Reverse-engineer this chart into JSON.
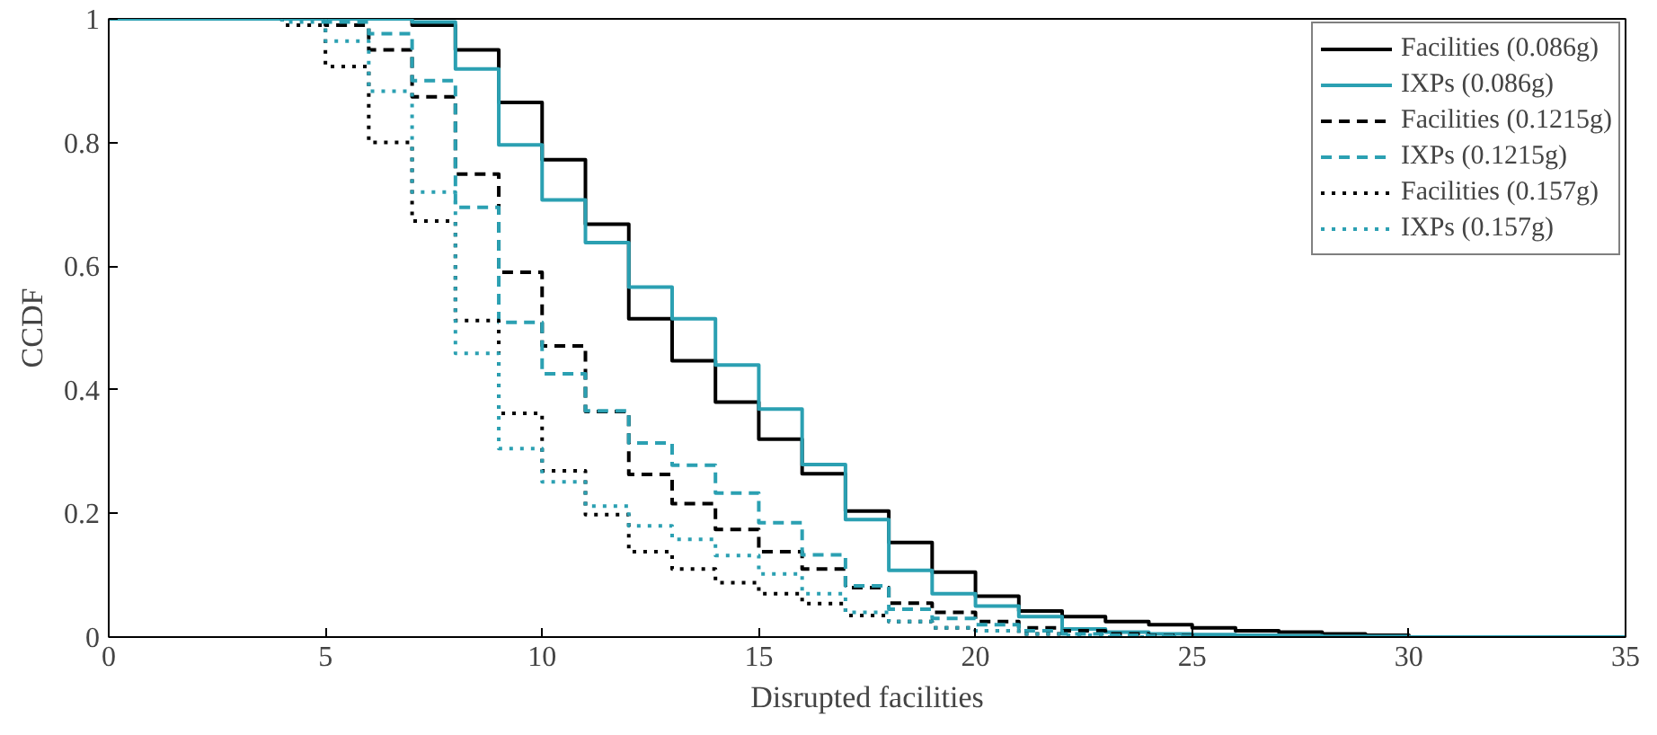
{
  "chart_data": {
    "type": "step",
    "xlabel": "Disrupted facilities",
    "ylabel": "CCDF",
    "x": [
      0,
      1,
      2,
      3,
      4,
      5,
      6,
      7,
      8,
      9,
      10,
      11,
      12,
      13,
      14,
      15,
      16,
      17,
      18,
      19,
      20,
      21,
      22,
      23,
      24,
      25,
      26,
      27,
      28,
      29,
      30,
      31,
      32,
      33,
      34,
      35
    ],
    "xlim": [
      0,
      35
    ],
    "ylim": [
      0,
      1
    ],
    "xticks": [
      0,
      5,
      10,
      15,
      20,
      25,
      30,
      35
    ],
    "yticks": [
      0,
      0.2,
      0.4,
      0.6,
      0.8,
      1
    ],
    "grid": false,
    "legend": "top right",
    "marker": "none",
    "series": [
      {
        "name": "Facilities (0.086g)",
        "color": "#000000",
        "line_style": "solid",
        "values": [
          1,
          1,
          1,
          1,
          1,
          1,
          1,
          0.99,
          0.95,
          0.865,
          0.772,
          0.668,
          0.515,
          0.447,
          0.38,
          0.32,
          0.264,
          0.204,
          0.153,
          0.105,
          0.066,
          0.042,
          0.033,
          0.025,
          0.02,
          0.015,
          0.01,
          0.008,
          0.005,
          0.003,
          0,
          0,
          0,
          0,
          0,
          0
        ]
      },
      {
        "name": "IXPs (0.086g)",
        "color": "#2ba0b2",
        "line_style": "solid",
        "values": [
          1,
          1,
          1,
          1,
          1,
          1,
          1,
          0.995,
          0.919,
          0.796,
          0.707,
          0.638,
          0.566,
          0.515,
          0.44,
          0.369,
          0.279,
          0.19,
          0.108,
          0.07,
          0.05,
          0.033,
          0.013,
          0.008,
          0.005,
          0.004,
          0.003,
          0.002,
          0.001,
          0.001,
          0,
          0,
          0,
          0,
          0,
          0
        ]
      },
      {
        "name": "Facilities (0.1215g)",
        "color": "#000000",
        "line_style": "dashed",
        "values": [
          1,
          1,
          1,
          1,
          1,
          0.99,
          0.95,
          0.874,
          0.749,
          0.59,
          0.471,
          0.365,
          0.263,
          0.216,
          0.174,
          0.138,
          0.11,
          0.08,
          0.055,
          0.04,
          0.025,
          0.015,
          0.01,
          0.005,
          0.003,
          0,
          0,
          0,
          0,
          0,
          0,
          0,
          0,
          0,
          0,
          0
        ]
      },
      {
        "name": "IXPs (0.1215g)",
        "color": "#2ba0b2",
        "line_style": "dashed",
        "values": [
          1,
          1,
          1,
          1,
          1,
          0.995,
          0.976,
          0.9,
          0.695,
          0.509,
          0.426,
          0.366,
          0.314,
          0.278,
          0.233,
          0.185,
          0.133,
          0.083,
          0.045,
          0.03,
          0.02,
          0.01,
          0.005,
          0.003,
          0.002,
          0,
          0,
          0,
          0,
          0,
          0,
          0,
          0,
          0,
          0,
          0
        ]
      },
      {
        "name": "Facilities (0.157g)",
        "color": "#000000",
        "line_style": "dotted",
        "values": [
          1,
          1,
          1,
          1,
          0.99,
          0.923,
          0.8,
          0.673,
          0.512,
          0.362,
          0.269,
          0.198,
          0.138,
          0.11,
          0.088,
          0.07,
          0.054,
          0.035,
          0.025,
          0.015,
          0.01,
          0.005,
          0.003,
          0,
          0,
          0,
          0,
          0,
          0,
          0,
          0,
          0,
          0,
          0,
          0,
          0
        ]
      },
      {
        "name": "IXPs (0.157g)",
        "color": "#2ba0b2",
        "line_style": "dotted",
        "values": [
          1,
          1,
          1,
          1,
          0.995,
          0.964,
          0.883,
          0.72,
          0.459,
          0.305,
          0.251,
          0.212,
          0.18,
          0.158,
          0.132,
          0.102,
          0.07,
          0.04,
          0.025,
          0.015,
          0.01,
          0.005,
          0.003,
          0,
          0,
          0,
          0,
          0,
          0,
          0,
          0,
          0,
          0,
          0,
          0,
          0
        ]
      }
    ]
  }
}
